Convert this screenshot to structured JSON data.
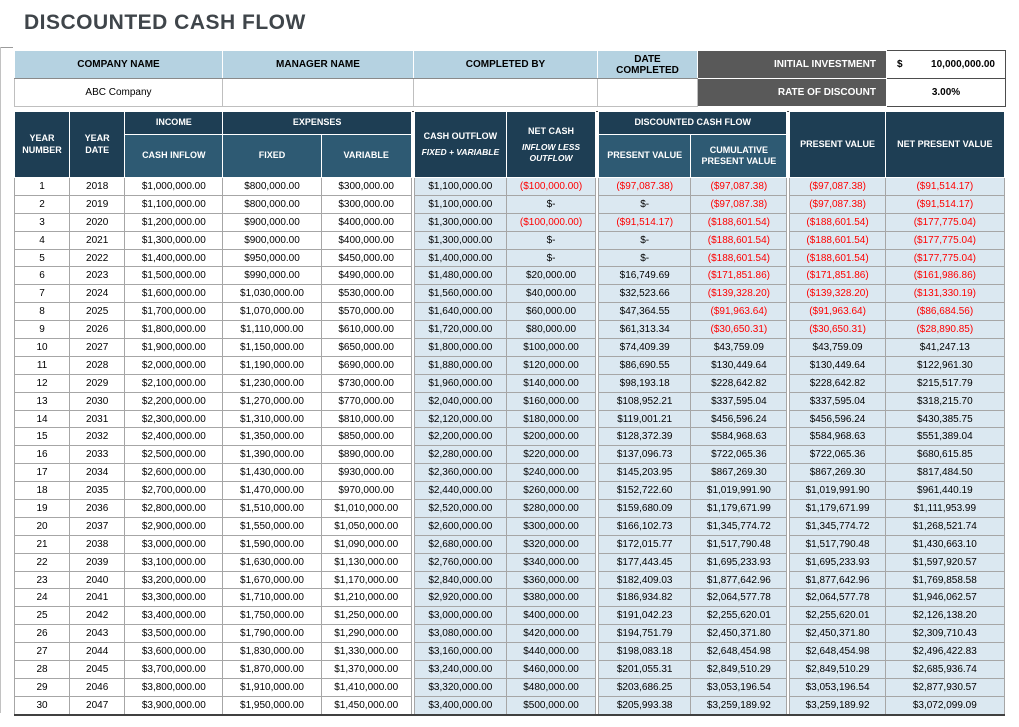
{
  "page": {
    "title": "DISCOUNTED CASH FLOW"
  },
  "info_band": {
    "company_label": "COMPANY NAME",
    "company_value": "ABC Company",
    "manager_label": "MANAGER NAME",
    "manager_value": "",
    "completed_by_label": "COMPLETED BY",
    "completed_by_value": "",
    "date_completed_label": "DATE COMPLETED",
    "date_completed_value": "",
    "initial_investment_label": "INITIAL INVESTMENT",
    "initial_investment_currency": "$",
    "initial_investment_value": "10,000,000.00",
    "rate_label": "RATE OF DISCOUNT",
    "rate_value": "3.00%"
  },
  "table": {
    "headers": {
      "year_number": "YEAR NUMBER",
      "year_date": "YEAR DATE",
      "income_group": "INCOME",
      "cash_inflow": "CASH INFLOW",
      "expenses_group": "EXPENSES",
      "fixed": "FIXED",
      "variable": "VARIABLE",
      "cash_outflow": "CASH OUTFLOW",
      "cash_outflow_sub": "FIXED + VARIABLE",
      "net_cash": "NET CASH",
      "net_cash_sub": "INFLOW LESS OUTFLOW",
      "dcf_group": "DISCOUNTED CASH FLOW",
      "dcf_present_value": "PRESENT VALUE",
      "dcf_cumulative_present_value": "CUMULATIVE PRESENT VALUE",
      "present_value": "PRESENT VALUE",
      "net_present_value": "NET PRESENT VALUE"
    },
    "rows": [
      [
        "1",
        "2018",
        "$1,000,000.00",
        "$800,000.00",
        "$300,000.00",
        "$1,100,000.00",
        "($100,000.00)",
        "($97,087.38)",
        "($97,087.38)",
        "($97,087.38)",
        "($91,514.17)"
      ],
      [
        "2",
        "2019",
        "$1,100,000.00",
        "$800,000.00",
        "$300,000.00",
        "$1,100,000.00",
        "$-",
        "$-",
        "($97,087.38)",
        "($97,087.38)",
        "($91,514.17)"
      ],
      [
        "3",
        "2020",
        "$1,200,000.00",
        "$900,000.00",
        "$400,000.00",
        "$1,300,000.00",
        "($100,000.00)",
        "($91,514.17)",
        "($188,601.54)",
        "($188,601.54)",
        "($177,775.04)"
      ],
      [
        "4",
        "2021",
        "$1,300,000.00",
        "$900,000.00",
        "$400,000.00",
        "$1,300,000.00",
        "$-",
        "$-",
        "($188,601.54)",
        "($188,601.54)",
        "($177,775.04)"
      ],
      [
        "5",
        "2022",
        "$1,400,000.00",
        "$950,000.00",
        "$450,000.00",
        "$1,400,000.00",
        "$-",
        "$-",
        "($188,601.54)",
        "($188,601.54)",
        "($177,775.04)"
      ],
      [
        "6",
        "2023",
        "$1,500,000.00",
        "$990,000.00",
        "$490,000.00",
        "$1,480,000.00",
        "$20,000.00",
        "$16,749.69",
        "($171,851.86)",
        "($171,851.86)",
        "($161,986.86)"
      ],
      [
        "7",
        "2024",
        "$1,600,000.00",
        "$1,030,000.00",
        "$530,000.00",
        "$1,560,000.00",
        "$40,000.00",
        "$32,523.66",
        "($139,328.20)",
        "($139,328.20)",
        "($131,330.19)"
      ],
      [
        "8",
        "2025",
        "$1,700,000.00",
        "$1,070,000.00",
        "$570,000.00",
        "$1,640,000.00",
        "$60,000.00",
        "$47,364.55",
        "($91,963.64)",
        "($91,963.64)",
        "($86,684.56)"
      ],
      [
        "9",
        "2026",
        "$1,800,000.00",
        "$1,110,000.00",
        "$610,000.00",
        "$1,720,000.00",
        "$80,000.00",
        "$61,313.34",
        "($30,650.31)",
        "($30,650.31)",
        "($28,890.85)"
      ],
      [
        "10",
        "2027",
        "$1,900,000.00",
        "$1,150,000.00",
        "$650,000.00",
        "$1,800,000.00",
        "$100,000.00",
        "$74,409.39",
        "$43,759.09",
        "$43,759.09",
        "$41,247.13"
      ],
      [
        "11",
        "2028",
        "$2,000,000.00",
        "$1,190,000.00",
        "$690,000.00",
        "$1,880,000.00",
        "$120,000.00",
        "$86,690.55",
        "$130,449.64",
        "$130,449.64",
        "$122,961.30"
      ],
      [
        "12",
        "2029",
        "$2,100,000.00",
        "$1,230,000.00",
        "$730,000.00",
        "$1,960,000.00",
        "$140,000.00",
        "$98,193.18",
        "$228,642.82",
        "$228,642.82",
        "$215,517.79"
      ],
      [
        "13",
        "2030",
        "$2,200,000.00",
        "$1,270,000.00",
        "$770,000.00",
        "$2,040,000.00",
        "$160,000.00",
        "$108,952.21",
        "$337,595.04",
        "$337,595.04",
        "$318,215.70"
      ],
      [
        "14",
        "2031",
        "$2,300,000.00",
        "$1,310,000.00",
        "$810,000.00",
        "$2,120,000.00",
        "$180,000.00",
        "$119,001.21",
        "$456,596.24",
        "$456,596.24",
        "$430,385.75"
      ],
      [
        "15",
        "2032",
        "$2,400,000.00",
        "$1,350,000.00",
        "$850,000.00",
        "$2,200,000.00",
        "$200,000.00",
        "$128,372.39",
        "$584,968.63",
        "$584,968.63",
        "$551,389.04"
      ],
      [
        "16",
        "2033",
        "$2,500,000.00",
        "$1,390,000.00",
        "$890,000.00",
        "$2,280,000.00",
        "$220,000.00",
        "$137,096.73",
        "$722,065.36",
        "$722,065.36",
        "$680,615.85"
      ],
      [
        "17",
        "2034",
        "$2,600,000.00",
        "$1,430,000.00",
        "$930,000.00",
        "$2,360,000.00",
        "$240,000.00",
        "$145,203.95",
        "$867,269.30",
        "$867,269.30",
        "$817,484.50"
      ],
      [
        "18",
        "2035",
        "$2,700,000.00",
        "$1,470,000.00",
        "$970,000.00",
        "$2,440,000.00",
        "$260,000.00",
        "$152,722.60",
        "$1,019,991.90",
        "$1,019,991.90",
        "$961,440.19"
      ],
      [
        "19",
        "2036",
        "$2,800,000.00",
        "$1,510,000.00",
        "$1,010,000.00",
        "$2,520,000.00",
        "$280,000.00",
        "$159,680.09",
        "$1,179,671.99",
        "$1,179,671.99",
        "$1,111,953.99"
      ],
      [
        "20",
        "2037",
        "$2,900,000.00",
        "$1,550,000.00",
        "$1,050,000.00",
        "$2,600,000.00",
        "$300,000.00",
        "$166,102.73",
        "$1,345,774.72",
        "$1,345,774.72",
        "$1,268,521.74"
      ],
      [
        "21",
        "2038",
        "$3,000,000.00",
        "$1,590,000.00",
        "$1,090,000.00",
        "$2,680,000.00",
        "$320,000.00",
        "$172,015.77",
        "$1,517,790.48",
        "$1,517,790.48",
        "$1,430,663.10"
      ],
      [
        "22",
        "2039",
        "$3,100,000.00",
        "$1,630,000.00",
        "$1,130,000.00",
        "$2,760,000.00",
        "$340,000.00",
        "$177,443.45",
        "$1,695,233.93",
        "$1,695,233.93",
        "$1,597,920.57"
      ],
      [
        "23",
        "2040",
        "$3,200,000.00",
        "$1,670,000.00",
        "$1,170,000.00",
        "$2,840,000.00",
        "$360,000.00",
        "$182,409.03",
        "$1,877,642.96",
        "$1,877,642.96",
        "$1,769,858.58"
      ],
      [
        "24",
        "2041",
        "$3,300,000.00",
        "$1,710,000.00",
        "$1,210,000.00",
        "$2,920,000.00",
        "$380,000.00",
        "$186,934.82",
        "$2,064,577.78",
        "$2,064,577.78",
        "$1,946,062.57"
      ],
      [
        "25",
        "2042",
        "$3,400,000.00",
        "$1,750,000.00",
        "$1,250,000.00",
        "$3,000,000.00",
        "$400,000.00",
        "$191,042.23",
        "$2,255,620.01",
        "$2,255,620.01",
        "$2,126,138.20"
      ],
      [
        "26",
        "2043",
        "$3,500,000.00",
        "$1,790,000.00",
        "$1,290,000.00",
        "$3,080,000.00",
        "$420,000.00",
        "$194,751.79",
        "$2,450,371.80",
        "$2,450,371.80",
        "$2,309,710.43"
      ],
      [
        "27",
        "2044",
        "$3,600,000.00",
        "$1,830,000.00",
        "$1,330,000.00",
        "$3,160,000.00",
        "$440,000.00",
        "$198,083.18",
        "$2,648,454.98",
        "$2,648,454.98",
        "$2,496,422.83"
      ],
      [
        "28",
        "2045",
        "$3,700,000.00",
        "$1,870,000.00",
        "$1,370,000.00",
        "$3,240,000.00",
        "$460,000.00",
        "$201,055.31",
        "$2,849,510.29",
        "$2,849,510.29",
        "$2,685,936.74"
      ],
      [
        "29",
        "2046",
        "$3,800,000.00",
        "$1,910,000.00",
        "$1,410,000.00",
        "$3,320,000.00",
        "$480,000.00",
        "$203,686.25",
        "$3,053,196.54",
        "$3,053,196.54",
        "$2,877,930.57"
      ],
      [
        "30",
        "2047",
        "$3,900,000.00",
        "$1,950,000.00",
        "$1,450,000.00",
        "$3,400,000.00",
        "$500,000.00",
        "$205,993.38",
        "$3,259,189.92",
        "$3,259,189.92",
        "$3,072,099.09"
      ]
    ]
  },
  "colors": {
    "header_dark_navy": "#1e3e54",
    "header_steel_blue": "#2e5a73",
    "band_light_blue": "#b5d2e1",
    "cell_light_blue": "#dbe8f1",
    "label_dark_gray": "#595959",
    "negative_red": "#fe0000",
    "title_charcoal": "#3f454a"
  }
}
